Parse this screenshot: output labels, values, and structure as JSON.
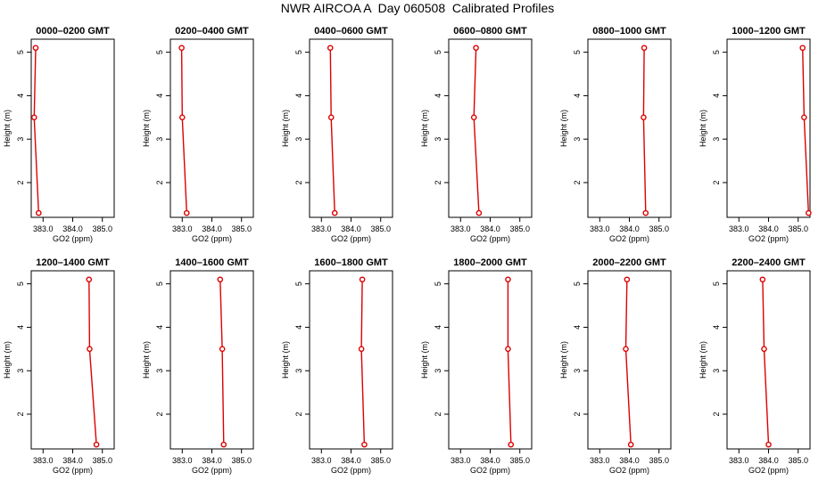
{
  "title": "NWR AIRCOA A  Day 060508  Calibrated Profiles",
  "colors": {
    "series": "#dd0000",
    "axis": "#000000"
  },
  "chart_data": [
    {
      "type": "line",
      "title": "0000–0200 GMT",
      "xlabel": "GO2 (ppm)",
      "ylabel": "Height (m)",
      "xlim": [
        382.6,
        385.4
      ],
      "ylim": [
        1.2,
        5.3
      ],
      "xticks": [
        "383.0",
        "384.0",
        "385.0"
      ],
      "yticks": [
        "2",
        "3",
        "4",
        "5"
      ],
      "x": [
        382.75,
        382.7,
        382.85
      ],
      "y": [
        5.1,
        3.5,
        1.3
      ]
    },
    {
      "type": "line",
      "title": "0200–0400 GMT",
      "xlabel": "GO2 (ppm)",
      "ylabel": "Height (m)",
      "xlim": [
        382.6,
        385.4
      ],
      "ylim": [
        1.2,
        5.3
      ],
      "xticks": [
        "383.0",
        "384.0",
        "385.0"
      ],
      "yticks": [
        "2",
        "3",
        "4",
        "5"
      ],
      "x": [
        382.98,
        383.0,
        383.15
      ],
      "y": [
        5.1,
        3.5,
        1.3
      ]
    },
    {
      "type": "line",
      "title": "0400–0600 GMT",
      "xlabel": "GO2 (ppm)",
      "ylabel": "Height (m)",
      "xlim": [
        382.6,
        385.4
      ],
      "ylim": [
        1.2,
        5.3
      ],
      "xticks": [
        "383.0",
        "384.0",
        "385.0"
      ],
      "yticks": [
        "2",
        "3",
        "4",
        "5"
      ],
      "x": [
        383.3,
        383.33,
        383.45
      ],
      "y": [
        5.1,
        3.5,
        1.3
      ]
    },
    {
      "type": "line",
      "title": "0600–0800 GMT",
      "xlabel": "GO2 (ppm)",
      "ylabel": "Height (m)",
      "xlim": [
        382.6,
        385.4
      ],
      "ylim": [
        1.2,
        5.3
      ],
      "xticks": [
        "383.0",
        "384.0",
        "385.0"
      ],
      "yticks": [
        "2",
        "3",
        "4",
        "5"
      ],
      "x": [
        383.52,
        383.45,
        383.62
      ],
      "y": [
        5.1,
        3.5,
        1.3
      ]
    },
    {
      "type": "line",
      "title": "0800–1000 GMT",
      "xlabel": "GO2 (ppm)",
      "ylabel": "Height (m)",
      "xlim": [
        382.6,
        385.4
      ],
      "ylim": [
        1.2,
        5.3
      ],
      "xticks": [
        "383.0",
        "384.0",
        "385.0"
      ],
      "yticks": [
        "2",
        "3",
        "4",
        "5"
      ],
      "x": [
        384.5,
        384.48,
        384.55
      ],
      "y": [
        5.1,
        3.5,
        1.3
      ]
    },
    {
      "type": "line",
      "title": "1000–1200 GMT",
      "xlabel": "GO2 (ppm)",
      "ylabel": "Height (m)",
      "xlim": [
        382.6,
        385.4
      ],
      "ylim": [
        1.2,
        5.3
      ],
      "xticks": [
        "383.0",
        "384.0",
        "385.0"
      ],
      "yticks": [
        "2",
        "3",
        "4",
        "5"
      ],
      "x": [
        385.15,
        385.2,
        385.35
      ],
      "y": [
        5.1,
        3.5,
        1.3
      ]
    },
    {
      "type": "line",
      "title": "1200–1400 GMT",
      "xlabel": "GO2 (ppm)",
      "ylabel": "Height (m)",
      "xlim": [
        382.6,
        385.4
      ],
      "ylim": [
        1.2,
        5.3
      ],
      "xticks": [
        "383.0",
        "384.0",
        "385.0"
      ],
      "yticks": [
        "2",
        "3",
        "4",
        "5"
      ],
      "x": [
        384.55,
        384.57,
        384.8
      ],
      "y": [
        5.1,
        3.5,
        1.3
      ]
    },
    {
      "type": "line",
      "title": "1400–1600 GMT",
      "xlabel": "GO2 (ppm)",
      "ylabel": "Height (m)",
      "xlim": [
        382.6,
        385.4
      ],
      "ylim": [
        1.2,
        5.3
      ],
      "xticks": [
        "383.0",
        "384.0",
        "385.0"
      ],
      "yticks": [
        "2",
        "3",
        "4",
        "5"
      ],
      "x": [
        384.28,
        384.35,
        384.4
      ],
      "y": [
        5.1,
        3.5,
        1.3
      ]
    },
    {
      "type": "line",
      "title": "1600–1800 GMT",
      "xlabel": "GO2 (ppm)",
      "ylabel": "Height (m)",
      "xlim": [
        382.6,
        385.4
      ],
      "ylim": [
        1.2,
        5.3
      ],
      "xticks": [
        "383.0",
        "384.0",
        "385.0"
      ],
      "yticks": [
        "2",
        "3",
        "4",
        "5"
      ],
      "x": [
        384.38,
        384.35,
        384.45
      ],
      "y": [
        5.1,
        3.5,
        1.3
      ]
    },
    {
      "type": "line",
      "title": "1800–2000 GMT",
      "xlabel": "GO2 (ppm)",
      "ylabel": "Height (m)",
      "xlim": [
        382.6,
        385.4
      ],
      "ylim": [
        1.2,
        5.3
      ],
      "xticks": [
        "383.0",
        "384.0",
        "385.0"
      ],
      "yticks": [
        "2",
        "3",
        "4",
        "5"
      ],
      "x": [
        384.6,
        384.6,
        384.7
      ],
      "y": [
        5.1,
        3.5,
        1.3
      ]
    },
    {
      "type": "line",
      "title": "2000–2200 GMT",
      "xlabel": "GO2 (ppm)",
      "ylabel": "Height (m)",
      "xlim": [
        382.6,
        385.4
      ],
      "ylim": [
        1.2,
        5.3
      ],
      "xticks": [
        "383.0",
        "384.0",
        "385.0"
      ],
      "yticks": [
        "2",
        "3",
        "4",
        "5"
      ],
      "x": [
        383.92,
        383.88,
        384.05
      ],
      "y": [
        5.1,
        3.5,
        1.3
      ]
    },
    {
      "type": "line",
      "title": "2200–2400 GMT",
      "xlabel": "GO2 (ppm)",
      "ylabel": "Height (m)",
      "xlim": [
        382.6,
        385.4
      ],
      "ylim": [
        1.2,
        5.3
      ],
      "xticks": [
        "383.0",
        "384.0",
        "385.0"
      ],
      "yticks": [
        "2",
        "3",
        "4",
        "5"
      ],
      "x": [
        383.8,
        383.85,
        384.0
      ],
      "y": [
        5.1,
        3.5,
        1.3
      ]
    }
  ]
}
